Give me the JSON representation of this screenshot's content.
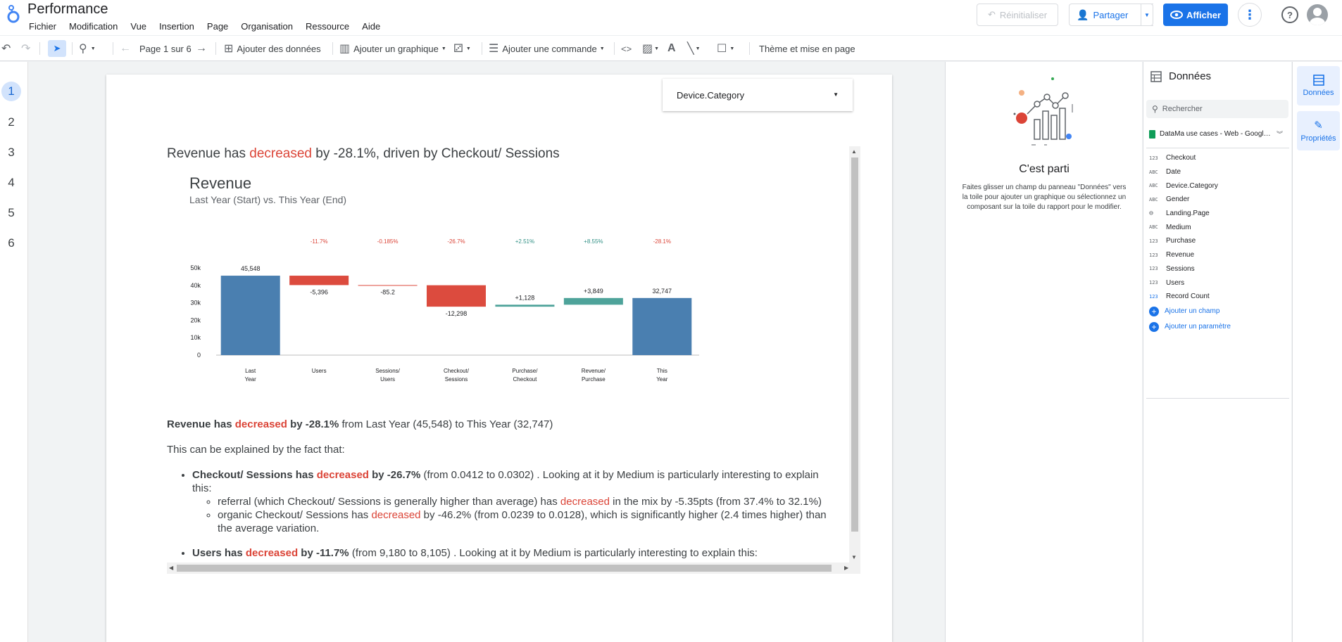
{
  "app": {
    "title": "Performance",
    "menu": [
      "Fichier",
      "Modification",
      "Vue",
      "Insertion",
      "Page",
      "Organisation",
      "Ressource",
      "Aide"
    ],
    "reset_label": "Réinitialiser",
    "share_label": "Partager",
    "view_label": "Afficher"
  },
  "toolbar": {
    "page_indicator": "Page 1 sur 6",
    "add_data": "Ajouter des données",
    "add_chart": "Ajouter un graphique",
    "add_control": "Ajouter une commande",
    "theme": "Thème et mise en page"
  },
  "pages": [
    "1",
    "2",
    "3",
    "4",
    "5",
    "6"
  ],
  "filter": {
    "label": "Device.Category"
  },
  "narrative": {
    "headline_pre": "Revenue has ",
    "headline_verb": "decreased",
    "headline_post": " by -28.1%, driven by Checkout/ Sessions",
    "summary_pre": "Revenue has ",
    "summary_verb": "decreased",
    "summary_post": " by -28.1%",
    "summary_tail": " from Last Year (45,548) to This Year (32,747)",
    "explain": "This can be explained by the fact that:",
    "b1_pre": "Checkout/ Sessions has ",
    "b1_verb": "decreased",
    "b1_post": " by -26.7%",
    "b1_tail": " (from 0.0412 to 0.0302) . Looking at it by Medium is particularly interesting to explain this:",
    "s1_pre": "referral (which Checkout/ Sessions is generally higher than average) has ",
    "s1_verb": "decreased",
    "s1_post": " in the mix by -5.35pts (from 37.4% to 32.1%)",
    "s2_pre": "organic Checkout/ Sessions has ",
    "s2_verb": "decreased",
    "s2_post": " by -46.2% (from 0.0239 to 0.0128), which is significantly higher (2.4 times higher) than the average variation.",
    "b2_pre": "Users has ",
    "b2_verb": "decreased",
    "b2_post": " by -11.7%",
    "b2_tail": " (from 9,180 to 8,105) . Looking at it by Medium is particularly interesting to explain this:"
  },
  "chart_data": {
    "type": "bar",
    "subtype": "waterfall",
    "title": "Revenue",
    "subtitle": "Last Year (Start) vs. This Year (End)",
    "categories": [
      [
        "Last",
        "Year"
      ],
      [
        "Users"
      ],
      [
        "Sessions/",
        "Users"
      ],
      [
        "Checkout/",
        "Sessions"
      ],
      [
        "Purchase/",
        "Checkout"
      ],
      [
        "Revenue/",
        "Purchase"
      ],
      [
        "This",
        "Year"
      ]
    ],
    "kinds": [
      "total",
      "delta",
      "delta",
      "delta",
      "delta",
      "delta",
      "total"
    ],
    "values": [
      45548,
      -5396,
      -85.2,
      -12298,
      1128,
      3849,
      32747
    ],
    "value_labels": [
      "45,548",
      "-5,396",
      "-85.2",
      "-12,298",
      "+1,128",
      "+3,849",
      "32,747"
    ],
    "pct_labels": [
      "",
      "-11.7%",
      "-0.185%",
      "-26.7%",
      "+2.51%",
      "+8.55%",
      "-28.1%"
    ],
    "y_ticks": [
      "0",
      "10k",
      "20k",
      "30k",
      "40k",
      "50k"
    ],
    "ylim": [
      0,
      50000
    ],
    "colors": {
      "total": "#4a7fb0",
      "decrease": "#dc4b3e",
      "increase": "#4ea39a",
      "pct_neg": "#db4437",
      "pct_pos": "#2f8f84"
    }
  },
  "start_panel": {
    "title": "C'est parti",
    "description": "Faites glisser un champ du panneau \"Données\" vers la toile pour ajouter un graphique ou sélectionnez un composant sur la toile du rapport pour le modifier."
  },
  "data_panel": {
    "title": "Données",
    "search_placeholder": "Rechercher",
    "source": "DataMa use cases - Web - Google A...",
    "fields": [
      {
        "type": "123",
        "name": "Checkout"
      },
      {
        "type": "ABC",
        "name": "Date"
      },
      {
        "type": "ABC",
        "name": "Device.Category"
      },
      {
        "type": "ABC",
        "name": "Gender"
      },
      {
        "type": "LNK",
        "name": "Landing.Page"
      },
      {
        "type": "ABC",
        "name": "Medium"
      },
      {
        "type": "123",
        "name": "Purchase"
      },
      {
        "type": "123",
        "name": "Revenue"
      },
      {
        "type": "123",
        "name": "Sessions"
      },
      {
        "type": "123",
        "name": "Users"
      },
      {
        "type": "123",
        "name": "Record Count"
      }
    ],
    "add_field": "Ajouter un champ",
    "add_param": "Ajouter un paramètre"
  },
  "rail": {
    "data_tab": "Données",
    "props_tab": "Propriétés"
  }
}
